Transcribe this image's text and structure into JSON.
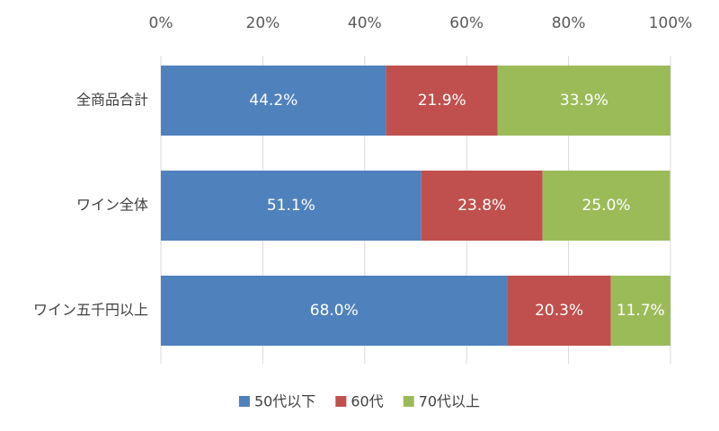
{
  "chart_data": {
    "type": "bar",
    "orientation": "horizontal",
    "stacked": true,
    "categories": [
      "全商品合計",
      "ワイン全体",
      "ワイン五千円以上"
    ],
    "series": [
      {
        "name": "50代以下",
        "color": "#4f81bd",
        "values": [
          44.2,
          51.1,
          68.0
        ],
        "value_labels": [
          "44.2%",
          "51.1%",
          "68.0%"
        ]
      },
      {
        "name": "60代",
        "color": "#c0504d",
        "values": [
          21.9,
          23.8,
          20.3
        ],
        "value_labels": [
          "21.9%",
          "23.8%",
          "20.3%"
        ]
      },
      {
        "name": "70代以上",
        "color": "#9bbb59",
        "values": [
          33.9,
          25.0,
          11.7
        ],
        "value_labels": [
          "33.9%",
          "25.0%",
          "11.7%"
        ]
      }
    ],
    "xlim": [
      0,
      100
    ],
    "xticks": [
      {
        "value": 0,
        "label": "0%"
      },
      {
        "value": 20,
        "label": "20%"
      },
      {
        "value": 40,
        "label": "40%"
      },
      {
        "value": 60,
        "label": "60%"
      },
      {
        "value": 80,
        "label": "80%"
      },
      {
        "value": 100,
        "label": "100%"
      }
    ],
    "grid": true,
    "legend": "bottom"
  }
}
